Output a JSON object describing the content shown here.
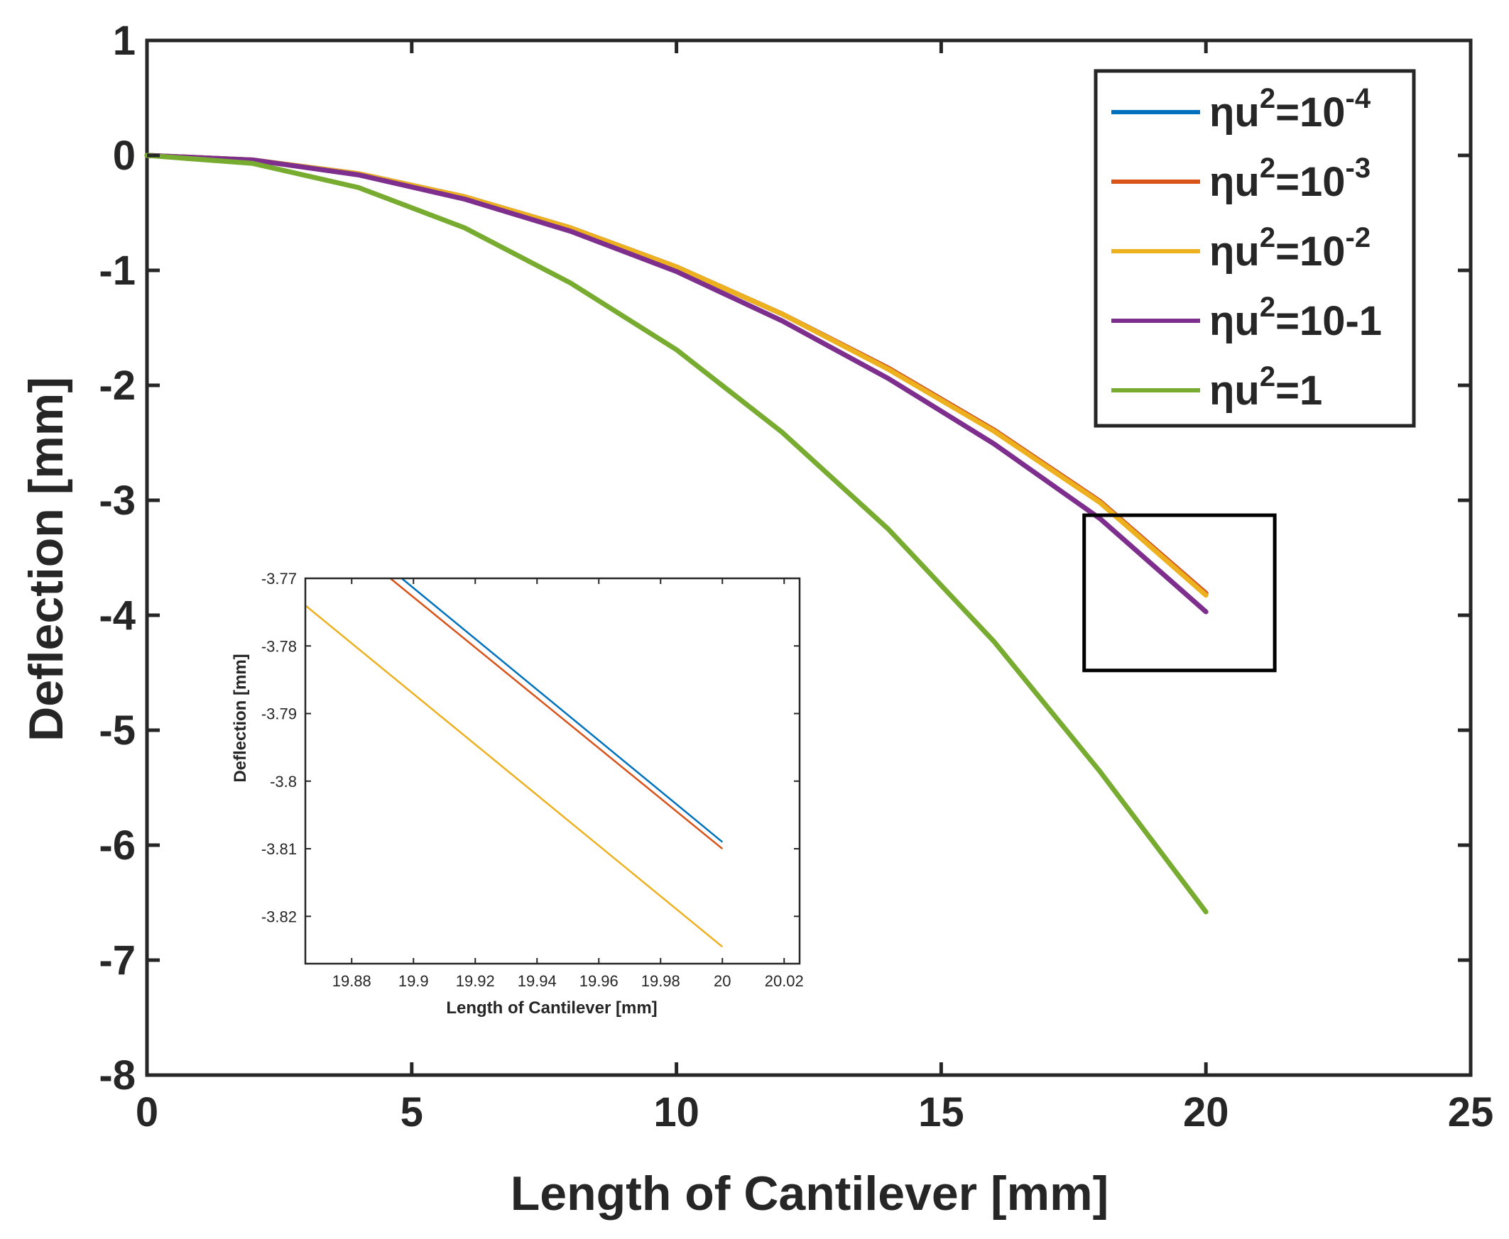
{
  "chart_data": [
    {
      "type": "line",
      "name": "main",
      "title": "",
      "xlabel": "Length of Cantilever [mm]",
      "ylabel": "Deflection [mm]",
      "xlim": [
        0,
        25
      ],
      "ylim": [
        -8,
        1
      ],
      "xticks": [
        0,
        5,
        10,
        15,
        20,
        25
      ],
      "yticks": [
        1,
        0,
        -1,
        -2,
        -3,
        -4,
        -5,
        -6,
        -7,
        -8
      ],
      "grid": false,
      "legend_position": "top-right",
      "x": [
        0,
        2,
        4,
        6,
        8,
        10,
        12,
        14,
        16,
        18,
        20
      ],
      "series": [
        {
          "name": "ηu²=10⁻⁴",
          "label_base": "ηu",
          "label_sup": "2",
          "label_mid": "=10",
          "label_sup2": "-4",
          "label_end": "",
          "color": "#0072BD",
          "values": [
            0,
            -0.04,
            -0.16,
            -0.36,
            -0.63,
            -0.97,
            -1.38,
            -1.85,
            -2.39,
            -3.01,
            -3.809
          ]
        },
        {
          "name": "ηu²=10⁻³",
          "label_base": "ηu",
          "label_sup": "2",
          "label_mid": "=10",
          "label_sup2": "-3",
          "label_end": "",
          "color": "#D95319",
          "values": [
            0,
            -0.04,
            -0.16,
            -0.36,
            -0.63,
            -0.97,
            -1.38,
            -1.85,
            -2.39,
            -3.01,
            -3.81
          ]
        },
        {
          "name": "ηu²=10⁻²",
          "label_base": "ηu",
          "label_sup": "2",
          "label_mid": "=10",
          "label_sup2": "-2",
          "label_end": "",
          "color": "#EDB120",
          "values": [
            0,
            -0.04,
            -0.16,
            -0.36,
            -0.63,
            -0.97,
            -1.38,
            -1.86,
            -2.4,
            -3.02,
            -3.825
          ]
        },
        {
          "name": "ηu²=10-1",
          "label_base": "ηu",
          "label_sup": "2",
          "label_mid": "=10-1",
          "label_sup2": "",
          "label_end": "",
          "color": "#7E2F8E",
          "values": [
            0,
            -0.04,
            -0.17,
            -0.38,
            -0.66,
            -1.01,
            -1.44,
            -1.94,
            -2.51,
            -3.16,
            -3.97
          ]
        },
        {
          "name": "ηu²=1",
          "label_base": "ηu",
          "label_sup": "2",
          "label_mid": "=1",
          "label_sup2": "",
          "label_end": "",
          "color": "#77AC30",
          "values": [
            0,
            -0.07,
            -0.28,
            -0.63,
            -1.11,
            -1.69,
            -2.41,
            -3.25,
            -4.23,
            -5.36,
            -6.58
          ]
        }
      ],
      "zoom_box": {
        "x": [
          17.7,
          21.3
        ],
        "y": [
          -4.48,
          -3.13
        ]
      }
    },
    {
      "type": "line",
      "name": "inset",
      "title": "",
      "xlabel": "Length of Cantilever [mm]",
      "ylabel": "Deflection [mm]",
      "xlim": [
        19.865,
        20.025
      ],
      "ylim": [
        -3.827,
        -3.77
      ],
      "xticks": [
        19.88,
        19.9,
        19.92,
        19.94,
        19.96,
        19.98,
        20,
        20.02
      ],
      "xtick_labels": [
        "19.88",
        "19.9",
        "19.92",
        "19.94",
        "19.96",
        "19.98",
        "20",
        "20.02"
      ],
      "yticks": [
        -3.77,
        -3.78,
        -3.79,
        -3.8,
        -3.81,
        -3.82
      ],
      "ytick_labels": [
        "-3.77",
        "-3.78",
        "-3.79",
        "-3.8",
        "-3.81",
        "-3.82"
      ],
      "grid": false,
      "series": [
        {
          "name": "ηu²=10⁻⁴",
          "color": "#0072BD",
          "x": [
            19.8962,
            20
          ],
          "y": [
            -3.77,
            -3.809
          ]
        },
        {
          "name": "ηu²=10⁻³",
          "color": "#D95319",
          "x": [
            19.8925,
            20
          ],
          "y": [
            -3.77,
            -3.81
          ]
        },
        {
          "name": "ηu²=10⁻²",
          "color": "#EDB120",
          "x": [
            19.865,
            20
          ],
          "y": [
            -3.774,
            -3.8245
          ]
        }
      ]
    }
  ]
}
